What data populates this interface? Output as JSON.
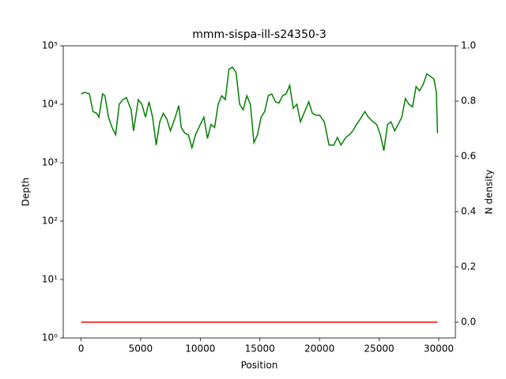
{
  "chart_data": {
    "type": "line",
    "title": "mmm-sispa-ill-s24350-3",
    "xlabel": "Position",
    "ylabel": "Depth",
    "y2label": "N density",
    "ylabel_color": "#008000",
    "y2label_color": "#ff0000",
    "xlim": [
      -1495,
      31398
    ],
    "xticks": [
      0,
      5000,
      10000,
      15000,
      20000,
      25000,
      30000
    ],
    "ylim": [
      1,
      100000
    ],
    "ylog": true,
    "yticks": [
      {
        "value": 1,
        "label": "10⁰"
      },
      {
        "value": 10,
        "label": "10¹"
      },
      {
        "value": 100,
        "label": "10²"
      },
      {
        "value": 1000,
        "label": "10³"
      },
      {
        "value": 10000,
        "label": "10⁴"
      },
      {
        "value": 100000,
        "label": "10⁵"
      }
    ],
    "y2lim": [
      -0.0571,
      1.0
    ],
    "y2ticks": [
      {
        "value": 0,
        "label": "0.0"
      },
      0.2,
      0.4,
      0.6,
      0.8,
      {
        "value": 1,
        "label": "1.0"
      }
    ],
    "series": [
      {
        "color": "#008000",
        "axis": "y",
        "x": [
          0,
          300,
          700,
          1000,
          1300,
          1500,
          1800,
          2000,
          2300,
          2600,
          2900,
          3200,
          3500,
          3800,
          4200,
          4400,
          4800,
          5100,
          5400,
          5700,
          6000,
          6300,
          6600,
          6900,
          7200,
          7500,
          7900,
          8200,
          8400,
          8700,
          9000,
          9300,
          9600,
          10000,
          10300,
          10600,
          10900,
          11200,
          11500,
          11800,
          12100,
          12400,
          12700,
          13000,
          13300,
          13600,
          13900,
          14200,
          14500,
          14800,
          15100,
          15400,
          15700,
          16000,
          16300,
          16600,
          16900,
          17200,
          17500,
          17800,
          18100,
          18400,
          18700,
          19100,
          19400,
          19700,
          20000,
          20400,
          20800,
          21200,
          21500,
          21800,
          22200,
          22500,
          22800,
          23100,
          23400,
          23800,
          24100,
          24500,
          24800,
          25100,
          25400,
          25700,
          26000,
          26300,
          26600,
          26900,
          27200,
          27500,
          27800,
          28100,
          28400,
          28700,
          29000,
          29300,
          29600,
          29800,
          29900
        ],
        "values": [
          15000,
          16000,
          15000,
          7500,
          7000,
          6000,
          15000,
          14000,
          6000,
          4000,
          3000,
          10000,
          12000,
          13000,
          8000,
          3500,
          12000,
          10000,
          6000,
          11000,
          6000,
          2000,
          5000,
          7000,
          5500,
          3500,
          6000,
          9500,
          4000,
          3200,
          3000,
          1800,
          3000,
          4500,
          6000,
          2600,
          4500,
          4000,
          10000,
          14000,
          12000,
          40000,
          43000,
          35000,
          10000,
          8000,
          14000,
          10000,
          2200,
          3000,
          6000,
          7500,
          14000,
          15000,
          11000,
          10500,
          14000,
          15000,
          21000,
          8500,
          10000,
          5000,
          7000,
          11000,
          7000,
          6500,
          6500,
          5000,
          2000,
          2000,
          2700,
          2000,
          2700,
          3000,
          3500,
          4500,
          5500,
          7500,
          6000,
          5000,
          4500,
          3000,
          1600,
          4500,
          5000,
          3500,
          4500,
          6000,
          12500,
          10000,
          9000,
          20000,
          17000,
          22000,
          33000,
          30000,
          27000,
          16000,
          3200
        ]
      },
      {
        "color": "#ff0000",
        "axis": "y2",
        "x": [
          0,
          29900
        ],
        "values": [
          0,
          0
        ]
      }
    ]
  }
}
